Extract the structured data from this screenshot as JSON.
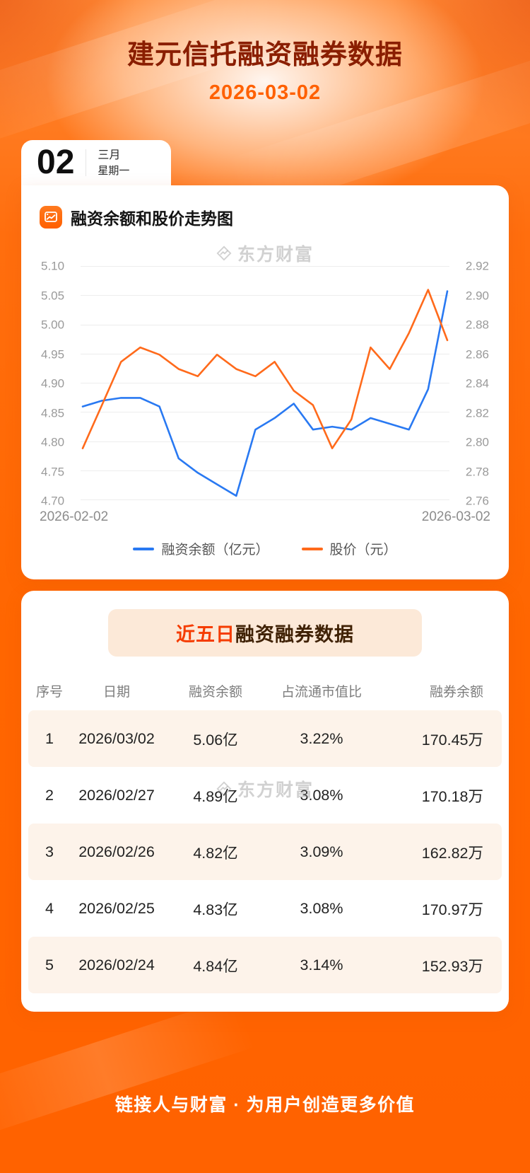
{
  "header": {
    "title": "建元信托融资融券数据",
    "date": "2026-03-02",
    "date_card": {
      "day": "02",
      "month": "三月",
      "weekday": "星期一"
    }
  },
  "chart_section": {
    "title": "融资余额和股价走势图",
    "watermark": "东方财富"
  },
  "chart_data": {
    "type": "line",
    "title": "融资余额和股价走势图",
    "grid": true,
    "legend_position": "bottom",
    "x_labels": [
      "2026-02-02",
      "2026-03-02"
    ],
    "left_axis": {
      "label": "融资余额（亿元）",
      "min": 4.7,
      "max": 5.1,
      "ticks": [
        "5.10",
        "5.05",
        "5.00",
        "4.95",
        "4.90",
        "4.85",
        "4.80",
        "4.75",
        "4.70"
      ]
    },
    "right_axis": {
      "label": "股价（元）",
      "min": 2.76,
      "max": 2.92,
      "ticks": [
        "2.92",
        "2.90",
        "2.88",
        "2.86",
        "2.84",
        "2.82",
        "2.80",
        "2.78",
        "2.76"
      ]
    },
    "series": [
      {
        "name": "融资余额（亿元）",
        "axis": "left",
        "color": "#2979f2",
        "values": [
          4.86,
          4.87,
          4.875,
          4.875,
          4.86,
          4.77,
          4.745,
          4.725,
          4.705,
          4.82,
          4.84,
          4.865,
          4.82,
          4.825,
          4.82,
          4.84,
          4.83,
          4.82,
          4.89,
          5.06
        ]
      },
      {
        "name": "股价（元）",
        "axis": "right",
        "color": "#ff6a1b",
        "values": [
          2.795,
          2.825,
          2.855,
          2.865,
          2.86,
          2.85,
          2.845,
          2.86,
          2.85,
          2.845,
          2.855,
          2.835,
          2.825,
          2.795,
          2.815,
          2.865,
          2.85,
          2.875,
          2.905,
          2.87
        ]
      }
    ]
  },
  "table_section": {
    "title_highlight": "近五日",
    "title_rest": "融资融券数据",
    "watermark": "东方财富",
    "columns": [
      "序号",
      "日期",
      "融资余额",
      "占流通市值比",
      "融券余额"
    ],
    "rows": [
      [
        "1",
        "2026/03/02",
        "5.06亿",
        "3.22%",
        "170.45万"
      ],
      [
        "2",
        "2026/02/27",
        "4.89亿",
        "3.08%",
        "170.18万"
      ],
      [
        "3",
        "2026/02/26",
        "4.82亿",
        "3.09%",
        "162.82万"
      ],
      [
        "4",
        "2026/02/25",
        "4.83亿",
        "3.08%",
        "170.97万"
      ],
      [
        "5",
        "2026/02/24",
        "4.84亿",
        "3.14%",
        "152.93万"
      ]
    ]
  },
  "footer": {
    "slogan": "链接人与财富 · 为用户创造更多价值"
  },
  "colors": {
    "accent": "#ff6600",
    "title_text": "#8a1e00",
    "date_text": "#ff6000",
    "blue_line": "#2979f2",
    "orange_line": "#ff6a1b",
    "table_stripe": "#fdf3ea",
    "badge_bg": "#fce9d8",
    "badge_highlight": "#f53c00"
  }
}
